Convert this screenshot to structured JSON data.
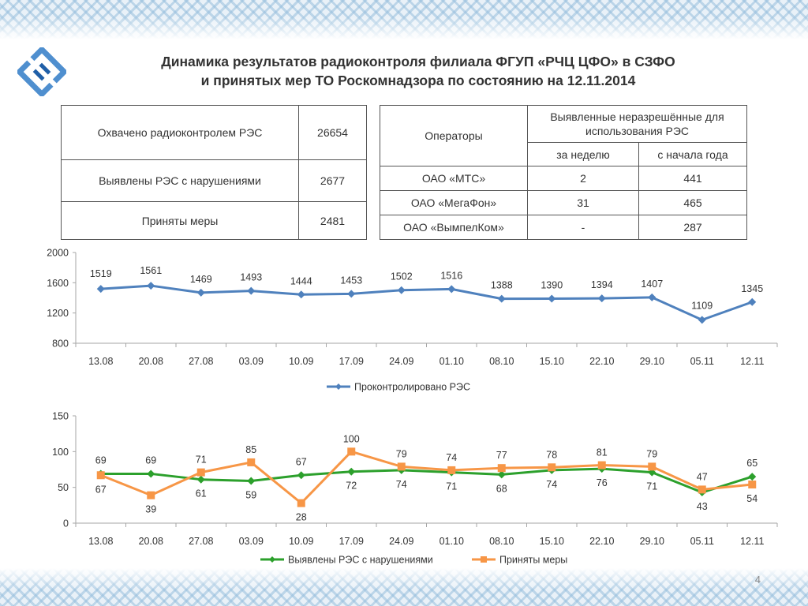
{
  "title": {
    "line1": "Динамика результатов радиоконтроля филиала ФГУП «РЧЦ ЦФО» в СЗФО",
    "line2": "и принятых мер ТО Роскомнадзора по состоянию на 12.11.2014"
  },
  "summary_table": {
    "rows": [
      {
        "label": "Охвачено радиоконтролем РЭС",
        "value": "26654"
      },
      {
        "label": "Выявлены РЭС с нарушениями",
        "value": "2677"
      },
      {
        "label": "Приняты меры",
        "value": "2481"
      }
    ]
  },
  "operators_table": {
    "header_operators": "Операторы",
    "header_group": "Выявленные неразрешённые для использования РЭС",
    "header_week": "за неделю",
    "header_year": "с начала года",
    "rows": [
      {
        "operator": "ОАО «МТС»",
        "week": "2",
        "year": "441"
      },
      {
        "operator": "ОАО «МегаФон»",
        "week": "31",
        "year": "465"
      },
      {
        "operator": "ОАО «ВымпелКом»",
        "week": "-",
        "year": "287"
      }
    ]
  },
  "colors": {
    "blue_series": "#4f81bd",
    "green_series": "#2ca02c",
    "orange_series": "#f79646",
    "axis": "#a6a6a6"
  },
  "chart_data": [
    {
      "type": "line",
      "x": [
        "13.08",
        "20.08",
        "27.08",
        "03.09",
        "10.09",
        "17.09",
        "24.09",
        "01.10",
        "08.10",
        "15.10",
        "22.10",
        "29.10",
        "05.11",
        "12.11"
      ],
      "series": [
        {
          "name": "Проконтролировано РЭС",
          "values": [
            1519,
            1561,
            1469,
            1493,
            1444,
            1453,
            1502,
            1516,
            1388,
            1390,
            1394,
            1407,
            1109,
            1345
          ]
        }
      ],
      "ylim": [
        800,
        2000
      ],
      "yticks": [
        "800",
        "1200",
        "1600",
        "2000"
      ],
      "legend": "bottom",
      "grid": false
    },
    {
      "type": "line",
      "x": [
        "13.08",
        "20.08",
        "27.08",
        "03.09",
        "10.09",
        "17.09",
        "24.09",
        "01.10",
        "08.10",
        "15.10",
        "22.10",
        "29.10",
        "05.11",
        "12.11"
      ],
      "series": [
        {
          "name": "Выявлены РЭС с нарушениями",
          "values": [
            69,
            69,
            61,
            59,
            67,
            72,
            74,
            71,
            68,
            74,
            76,
            71,
            43,
            65
          ]
        },
        {
          "name": "Приняты меры",
          "values": [
            67,
            39,
            71,
            85,
            28,
            100,
            79,
            74,
            77,
            78,
            81,
            79,
            47,
            54
          ]
        }
      ],
      "ylim": [
        0,
        150
      ],
      "yticks": [
        "0",
        "50",
        "100",
        "150"
      ],
      "legend": "bottom",
      "grid": false
    }
  ],
  "page_number": "4"
}
